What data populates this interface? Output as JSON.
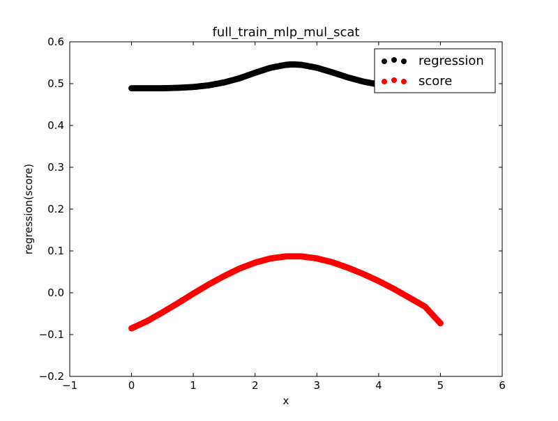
{
  "chart_data": {
    "type": "scatter",
    "title": "full_train_mlp_mul_scat",
    "xlabel": "x",
    "ylabel": "regression(score)",
    "xlim": [
      -1,
      6
    ],
    "ylim": [
      -0.2,
      0.6
    ],
    "x_ticks": [
      -1,
      0,
      1,
      2,
      3,
      4,
      5,
      6
    ],
    "x_tick_labels": [
      "−1",
      "0",
      "1",
      "2",
      "3",
      "4",
      "5",
      "6"
    ],
    "y_ticks": [
      -0.2,
      -0.1,
      0.0,
      0.1,
      0.2,
      0.3,
      0.4,
      0.5,
      0.6
    ],
    "y_tick_labels": [
      "−0.2",
      "−0.1",
      "0.0",
      "0.1",
      "0.2",
      "0.3",
      "0.4",
      "0.5",
      "0.6"
    ],
    "grid": false,
    "legend_position": "top-right",
    "series": [
      {
        "name": "regression",
        "color": "#000000",
        "marker": "circle",
        "x": [
          0.0,
          0.25,
          0.5,
          0.75,
          1.0,
          1.25,
          1.5,
          1.75,
          2.0,
          2.25,
          2.5,
          2.6,
          2.75,
          3.0,
          3.25,
          3.5,
          3.75,
          4.0,
          4.25,
          4.5,
          4.75,
          5.0
        ],
        "y": [
          0.489,
          0.489,
          0.489,
          0.49,
          0.492,
          0.496,
          0.503,
          0.513,
          0.526,
          0.538,
          0.545,
          0.546,
          0.545,
          0.538,
          0.527,
          0.515,
          0.505,
          0.498,
          0.494,
          0.492,
          0.491,
          0.49
        ]
      },
      {
        "name": "score",
        "color": "#ff0000",
        "marker": "circle",
        "x": [
          0.0,
          0.25,
          0.5,
          0.75,
          1.0,
          1.25,
          1.5,
          1.75,
          2.0,
          2.25,
          2.5,
          2.75,
          3.0,
          3.25,
          3.5,
          3.75,
          4.0,
          4.25,
          4.5,
          4.75,
          5.0
        ],
        "y": [
          -0.085,
          -0.068,
          -0.047,
          -0.025,
          -0.002,
          0.02,
          0.04,
          0.058,
          0.072,
          0.082,
          0.087,
          0.087,
          0.082,
          0.073,
          0.06,
          0.045,
          0.028,
          0.009,
          -0.012,
          -0.033,
          -0.073
        ]
      }
    ]
  }
}
